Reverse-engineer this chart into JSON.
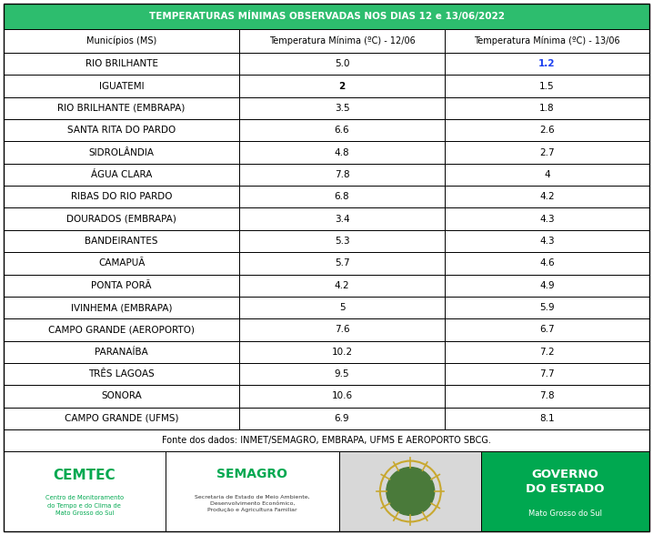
{
  "title": "TEMPERATURAS MÍNIMAS OBSERVADAS NOS DIAS 12 e 13/06/2022",
  "header": [
    "Municípios (MS)",
    "Temperatura Mínima (ºC) - 12/06",
    "Temperatura Mínima (ºC) - 13/06"
  ],
  "rows": [
    [
      "RIO BRILHANTE",
      "5.0",
      "1.2"
    ],
    [
      "IGUATEMI",
      "2",
      "1.5"
    ],
    [
      "RIO BRILHANTE (EMBRAPA)",
      "3.5",
      "1.8"
    ],
    [
      "SANTA RITA DO PARDO",
      "6.6",
      "2.6"
    ],
    [
      "SIDROLÂNDIA",
      "4.8",
      "2.7"
    ],
    [
      "ÁGUA CLARA",
      "7.8",
      "4"
    ],
    [
      "RIBAS DO RIO PARDO",
      "6.8",
      "4.2"
    ],
    [
      "DOURADOS (EMBRAPA)",
      "3.4",
      "4.3"
    ],
    [
      "BANDEIRANTES",
      "5.3",
      "4.3"
    ],
    [
      "CAMAPUÃ",
      "5.7",
      "4.6"
    ],
    [
      "PONTA PORÃ",
      "4.2",
      "4.9"
    ],
    [
      "IVINHEMA (EMBRAPA)",
      "5",
      "5.9"
    ],
    [
      "CAMPO GRANDE (AEROPORTO)",
      "7.6",
      "6.7"
    ],
    [
      "PARANAÍBA",
      "10.2",
      "7.2"
    ],
    [
      "TRÊS LAGOAS",
      "9.5",
      "7.7"
    ],
    [
      "SONORA",
      "10.6",
      "7.8"
    ],
    [
      "CAMPO GRANDE (UFMS)",
      "6.9",
      "8.1"
    ]
  ],
  "title_bg": "#2dbd6e",
  "title_color": "#ffffff",
  "header_bg": "#ffffff",
  "row_bg": "#ffffff",
  "border_color": "#000000",
  "header_text_color": "#000000",
  "row_text_color": "#000000",
  "bold_blue_color": "#1a3ef0",
  "source_text": "Fonte dos dados: INMET/SEMAGRO, EMBRAPA, UFMS E AEROPORTO SBCG.",
  "cemtec_color": "#00a850",
  "semagro_color": "#00a850",
  "gov_bg": "#00a850",
  "gov_color": "#ffffff",
  "cemtec_main": "CEMTEC",
  "cemtec_sub": "Centro de Monitoramento\ndo Tempo e do Clima de\nMato Grosso do Sul",
  "semagro_main": "SEMAGRO",
  "semagro_sub": "Secretaria de Estado de Meio Ambiente,\nDesenvolvimento Econômico,\nProdução e Agricultura Familiar",
  "gov_main": "GOVERNO\nDO ESTADO",
  "gov_sub": "Mato Grosso do Sul",
  "fig_width": 7.18,
  "fig_height": 5.88,
  "dpi": 100
}
